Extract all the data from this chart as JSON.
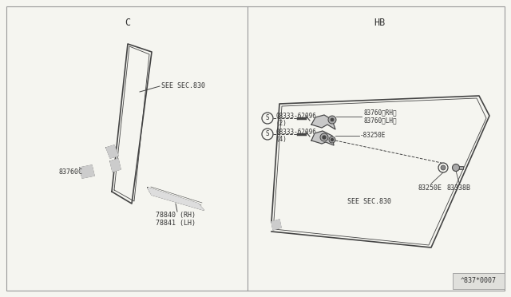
{
  "bg_color": "#f5f5f0",
  "border_color": "#999999",
  "line_color": "#444444",
  "title_left": "C",
  "title_right": "HB",
  "part_number_bottom": "^837*0007",
  "left_labels": {
    "see_sec830": "SEE SEC.830",
    "83760c": "83760C",
    "78840rh": "78840 (RH)",
    "78841lh": "78841 (LH)"
  },
  "right_labels": {
    "08333_2": "08333-62096",
    "qty2": "(2)",
    "08333_4": "08333-62096",
    "qty4": "(4)",
    "83760rh": "83760〈RH〉",
    "83760lh": "83760〈LH〉",
    "83250e_top": "-83250E",
    "83250e_bot": "83250E",
    "83338b": "83338B",
    "see_sec830": "SEE SEC.830"
  },
  "font_size": 6.0,
  "title_font_size": 8.5
}
